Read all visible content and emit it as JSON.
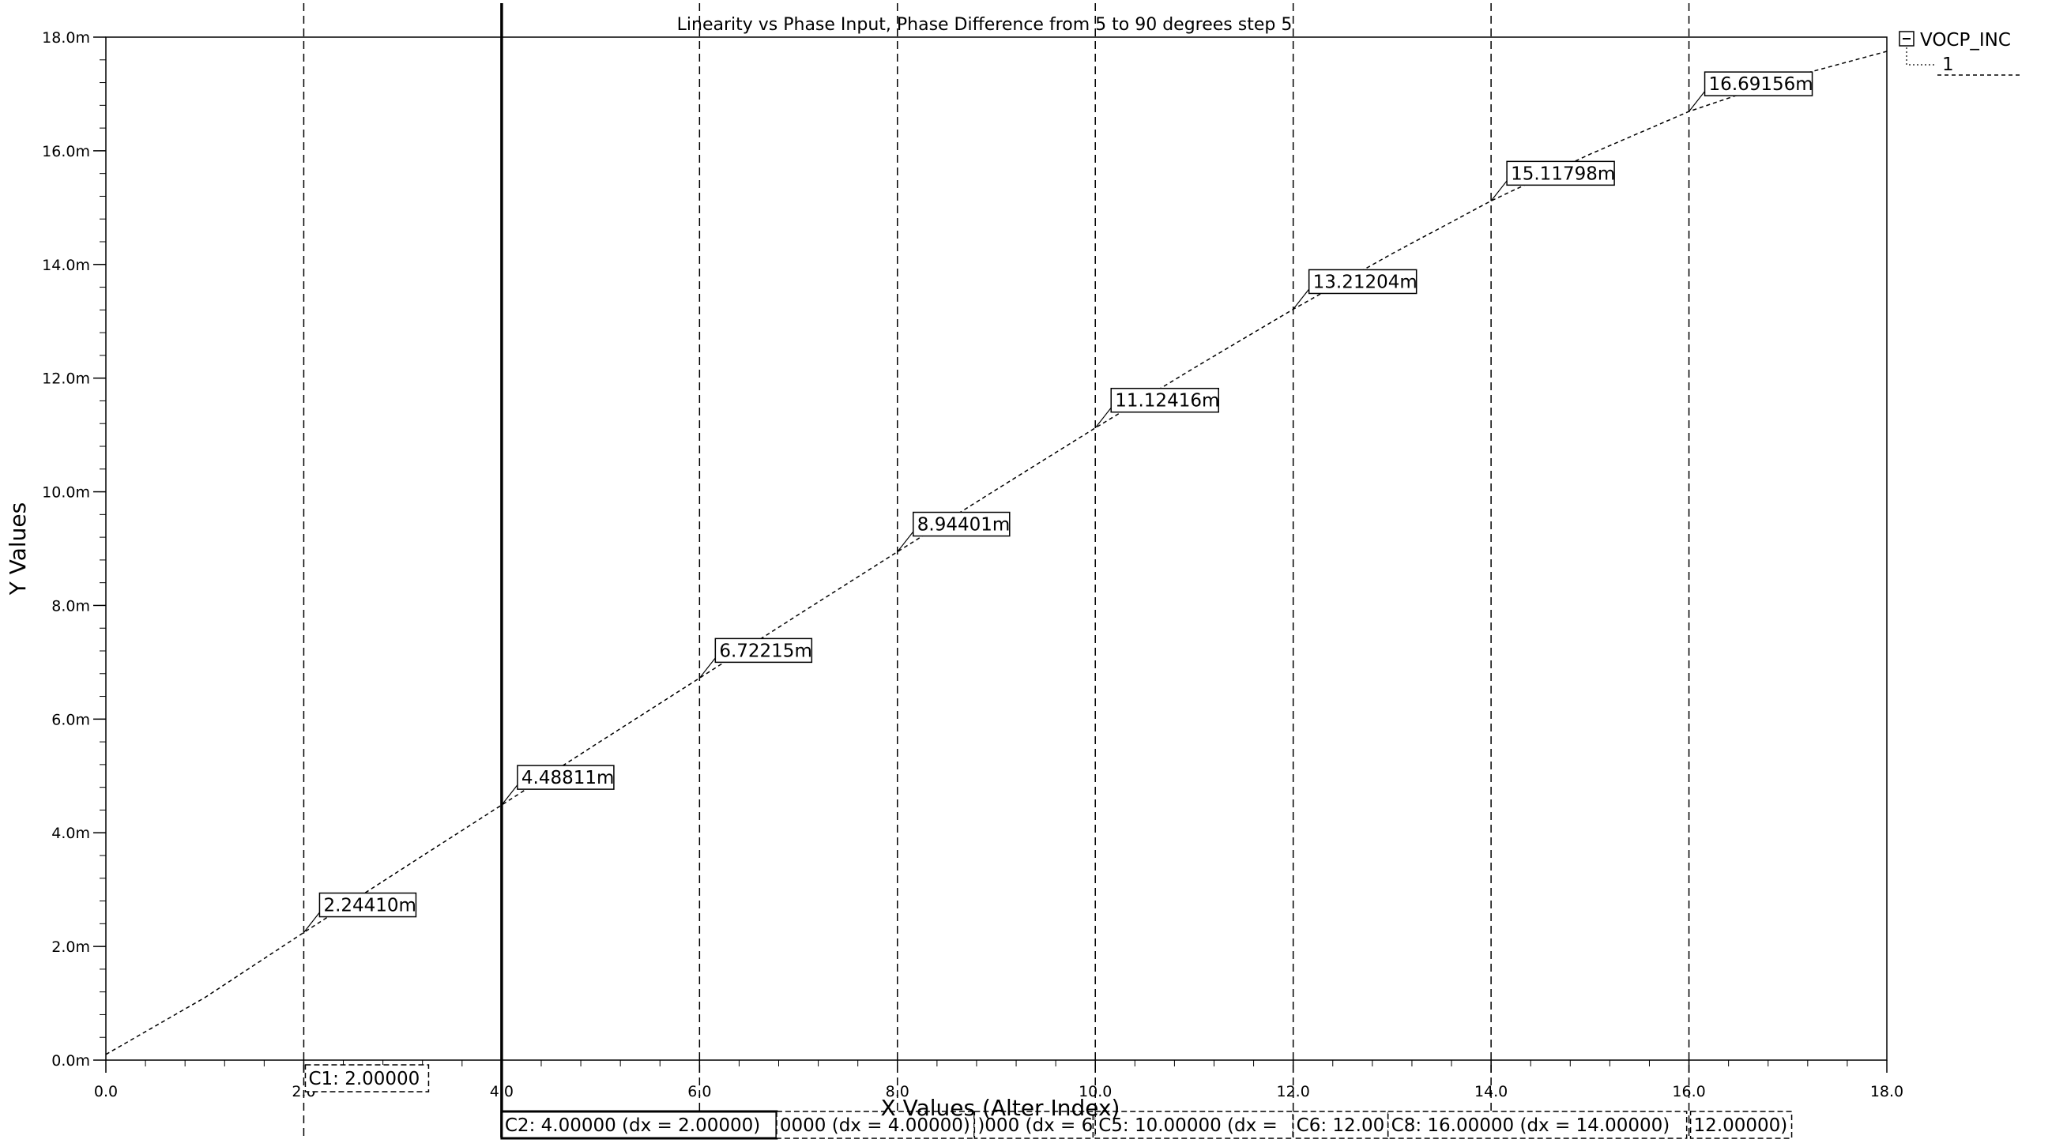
{
  "chart_data": {
    "type": "line",
    "title": "Linearity vs Phase Input, Phase Difference from 5 to 90 degrees step 5",
    "xlabel": "X Values (Alter Index)",
    "ylabel": "Y Values",
    "xlim": [
      0,
      18
    ],
    "ylim": [
      0,
      18
    ],
    "x_ticks": [
      0,
      2,
      4,
      6,
      8,
      10,
      12,
      14,
      16,
      18
    ],
    "x_tick_labels": [
      "0.0",
      "2.0",
      "4.0",
      "6.0",
      "8.0",
      "10.0",
      "12.0",
      "14.0",
      "16.0",
      "18.0"
    ],
    "y_ticks": [
      0,
      2,
      4,
      6,
      8,
      10,
      12,
      14,
      16,
      18
    ],
    "y_tick_labels": [
      "0.0m",
      "2.0m",
      "4.0m",
      "6.0m",
      "8.0m",
      "10.0m",
      "12.0m",
      "14.0m",
      "16.0m",
      "18.0m"
    ],
    "grid": false,
    "legend_position": "top-right",
    "series": [
      {
        "name": "VOCP_INC",
        "sweep_label": "1",
        "x": [
          0,
          1,
          2,
          3,
          4,
          5,
          6,
          7,
          8,
          9,
          10,
          11,
          12,
          13,
          14,
          15,
          16,
          17,
          18
        ],
        "values": [
          0.1,
          1.1,
          2.2441,
          3.37,
          4.48811,
          5.61,
          6.72215,
          7.84,
          8.94401,
          10.04,
          11.12416,
          12.18,
          13.21204,
          14.19,
          15.11798,
          15.94,
          16.69156,
          17.28,
          17.75
        ]
      }
    ],
    "markers": [
      {
        "x": 2,
        "y": 2.2441,
        "label": "2.24410m"
      },
      {
        "x": 4,
        "y": 4.48811,
        "label": "4.48811m"
      },
      {
        "x": 6,
        "y": 6.72215,
        "label": "6.72215m"
      },
      {
        "x": 8,
        "y": 8.94401,
        "label": "8.94401m"
      },
      {
        "x": 10,
        "y": 11.12416,
        "label": "11.12416m"
      },
      {
        "x": 12,
        "y": 13.21204,
        "label": "13.21204m"
      },
      {
        "x": 14,
        "y": 15.11798,
        "label": "15.11798m"
      },
      {
        "x": 16,
        "y": 16.69156,
        "label": "16.69156m"
      }
    ],
    "cursors": [
      {
        "x": 2,
        "label": "C1: 2.00000",
        "active": false
      },
      {
        "x": 4,
        "label": "C2: 4.00000 (dx = 2.00000)",
        "active": true
      },
      {
        "x": 6,
        "label": "0000 (dx = 4.00000)",
        "active": false
      },
      {
        "x": 8,
        "label": ")000 (dx = 6",
        "active": false
      },
      {
        "x": 10,
        "label": "C5: 10.00000 (dx =",
        "active": false
      },
      {
        "x": 12,
        "label": "C6: 12.00",
        "active": false
      },
      {
        "x": 14,
        "label": "",
        "active": false
      },
      {
        "x": 16,
        "label": "C8: 16.00000 (dx = 14.00000)",
        "active": false
      },
      {
        "x": 16,
        "label": "12.00000)",
        "active": false
      }
    ]
  }
}
